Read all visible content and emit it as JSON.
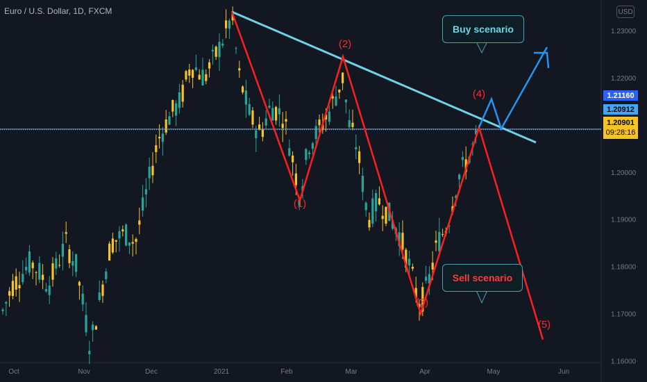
{
  "header": {
    "symbol_title": "Euro / U.S. Dollar, 1D, FXCM",
    "currency_button": "USD"
  },
  "price_tags": {
    "first": {
      "value": "1.21160",
      "bg": "#2962ff"
    },
    "second": {
      "value": "1.20912",
      "bg": "#42a5f5"
    },
    "third": {
      "value": "1.20901",
      "countdown": "09:28:16",
      "bg": "#f7c325"
    }
  },
  "annotations": {
    "buy_scenario": "Buy scenario",
    "sell_scenario": "Sell scenario",
    "wave_labels": [
      "(1)",
      "(2)",
      "(3)",
      "(4)",
      "(5)"
    ]
  },
  "chart_data": {
    "type": "candlestick",
    "y_axis_ticks": [
      "1.23000",
      "1.22000",
      "1.21000",
      "1.20000",
      "1.19000",
      "1.18000",
      "1.17000",
      "1.16000"
    ],
    "ylim": [
      1.1555,
      1.2365
    ],
    "x_axis_ticks": [
      "Oct",
      "Nov",
      "Dec",
      "2021",
      "Feb",
      "Mar",
      "Apr",
      "May",
      "Jun"
    ],
    "grid": false,
    "colors": {
      "up_candle": "#26a69a",
      "down_candle": "#f7c325",
      "trendline": "#6fd3e6",
      "bearish_path": "#ff1f1f",
      "bullish_path": "#2196f3"
    },
    "horizontal_lines": [
      1.20912,
      1.20901
    ],
    "trendline": {
      "from": [
        "2021",
        1.234
      ],
      "to": [
        "May",
        1.2063
      ]
    },
    "wave_path": [
      {
        "label": "start",
        "date": "2021",
        "price": 1.234
      },
      {
        "label": "(1)",
        "date": "Jan 18",
        "price": 1.194
      },
      {
        "label": "(2)",
        "date": "Feb 25",
        "price": 1.2245
      },
      {
        "label": "(3)",
        "date": "Mar 31",
        "price": 1.17
      },
      {
        "label": "(4)",
        "date": "Apr 29",
        "price": 1.2095
      },
      {
        "label": "(5)",
        "date": "Jun",
        "price": 1.1645
      }
    ],
    "buy_path": [
      {
        "date": "Apr 29",
        "price": 1.2095
      },
      {
        "date": "May 3",
        "price": 1.2155
      },
      {
        "date": "May 5",
        "price": 1.2092
      },
      {
        "date": "May 24",
        "price": 1.2265
      }
    ]
  }
}
